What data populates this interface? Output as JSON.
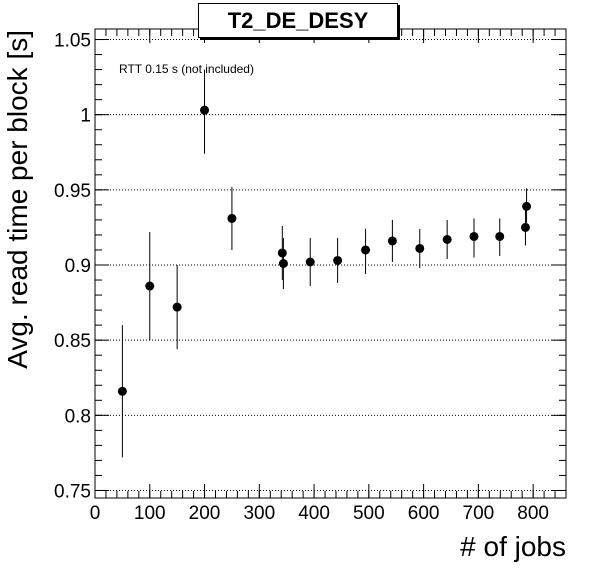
{
  "chart_data": {
    "type": "scatter",
    "title": "T2_DE_DESY",
    "xlabel": "# of jobs",
    "ylabel": "Avg. read time per block [s]",
    "annotation": "RTT 0.15 s (not included)",
    "xlim": [
      0,
      860
    ],
    "ylim": [
      0.745,
      1.057
    ],
    "x_ticks": [
      0,
      100,
      200,
      300,
      400,
      500,
      600,
      700,
      800
    ],
    "x_tick_labels": [
      "0",
      "100",
      "200",
      "300",
      "400",
      "500",
      "600",
      "700",
      "800"
    ],
    "y_ticks": [
      0.75,
      0.8,
      0.85,
      0.9,
      0.95,
      1.0,
      1.05
    ],
    "y_tick_labels": [
      "0.75",
      "0.8",
      "0.85",
      "0.9",
      "0.95",
      "1",
      "1.05"
    ],
    "grid_y": true,
    "grid_x": false,
    "points": [
      {
        "x": 50,
        "y": 0.816,
        "err_low": 0.772,
        "err_high": 0.86
      },
      {
        "x": 100,
        "y": 0.886,
        "err_low": 0.85,
        "err_high": 0.922
      },
      {
        "x": 150,
        "y": 0.872,
        "err_low": 0.844,
        "err_high": 0.9
      },
      {
        "x": 200,
        "y": 1.003,
        "err_low": 0.974,
        "err_high": 1.03
      },
      {
        "x": 250,
        "y": 0.931,
        "err_low": 0.91,
        "err_high": 0.952
      },
      {
        "x": 342,
        "y": 0.908,
        "err_low": 0.89,
        "err_high": 0.926
      },
      {
        "x": 344,
        "y": 0.901,
        "err_low": 0.884,
        "err_high": 0.918
      },
      {
        "x": 393,
        "y": 0.902,
        "err_low": 0.886,
        "err_high": 0.918
      },
      {
        "x": 443,
        "y": 0.903,
        "err_low": 0.888,
        "err_high": 0.918
      },
      {
        "x": 494,
        "y": 0.91,
        "err_low": 0.894,
        "err_high": 0.924
      },
      {
        "x": 543,
        "y": 0.916,
        "err_low": 0.902,
        "err_high": 0.93
      },
      {
        "x": 593,
        "y": 0.911,
        "err_low": 0.898,
        "err_high": 0.924
      },
      {
        "x": 643,
        "y": 0.917,
        "err_low": 0.904,
        "err_high": 0.93
      },
      {
        "x": 692,
        "y": 0.919,
        "err_low": 0.905,
        "err_high": 0.931
      },
      {
        "x": 739,
        "y": 0.919,
        "err_low": 0.906,
        "err_high": 0.931
      },
      {
        "x": 786,
        "y": 0.925,
        "err_low": 0.913,
        "err_high": 0.937
      },
      {
        "x": 788,
        "y": 0.939,
        "err_low": 0.928,
        "err_high": 0.951
      }
    ]
  }
}
